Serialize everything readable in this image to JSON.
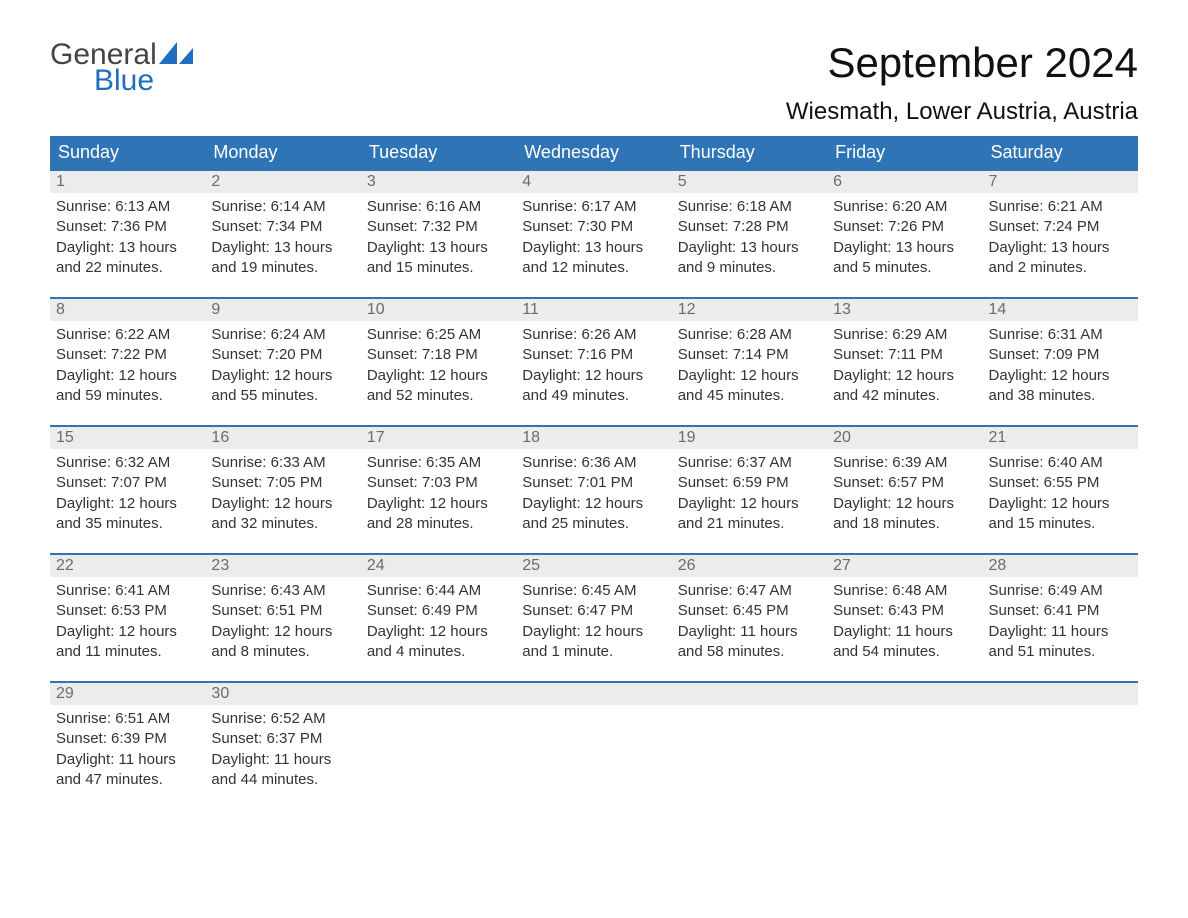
{
  "brand": {
    "word1": "General",
    "word2": "Blue",
    "tri_color": "#1e6fbf"
  },
  "header": {
    "month": "September 2024",
    "location": "Wiesmath, Lower Austria, Austria"
  },
  "colors": {
    "header_bg": "#2f75b5",
    "header_fg": "#ffffff",
    "row_border": "#2f75b5",
    "daynum_bg": "#ececec",
    "daynum_fg": "#6b6b6b",
    "page_bg": "#ffffff",
    "text": "#333333"
  },
  "weekdays": [
    "Sunday",
    "Monday",
    "Tuesday",
    "Wednesday",
    "Thursday",
    "Friday",
    "Saturday"
  ],
  "days": [
    {
      "n": "1",
      "sunrise": "6:13 AM",
      "sunset": "7:36 PM",
      "daylight": "13 hours and 22 minutes."
    },
    {
      "n": "2",
      "sunrise": "6:14 AM",
      "sunset": "7:34 PM",
      "daylight": "13 hours and 19 minutes."
    },
    {
      "n": "3",
      "sunrise": "6:16 AM",
      "sunset": "7:32 PM",
      "daylight": "13 hours and 15 minutes."
    },
    {
      "n": "4",
      "sunrise": "6:17 AM",
      "sunset": "7:30 PM",
      "daylight": "13 hours and 12 minutes."
    },
    {
      "n": "5",
      "sunrise": "6:18 AM",
      "sunset": "7:28 PM",
      "daylight": "13 hours and 9 minutes."
    },
    {
      "n": "6",
      "sunrise": "6:20 AM",
      "sunset": "7:26 PM",
      "daylight": "13 hours and 5 minutes."
    },
    {
      "n": "7",
      "sunrise": "6:21 AM",
      "sunset": "7:24 PM",
      "daylight": "13 hours and 2 minutes."
    },
    {
      "n": "8",
      "sunrise": "6:22 AM",
      "sunset": "7:22 PM",
      "daylight": "12 hours and 59 minutes."
    },
    {
      "n": "9",
      "sunrise": "6:24 AM",
      "sunset": "7:20 PM",
      "daylight": "12 hours and 55 minutes."
    },
    {
      "n": "10",
      "sunrise": "6:25 AM",
      "sunset": "7:18 PM",
      "daylight": "12 hours and 52 minutes."
    },
    {
      "n": "11",
      "sunrise": "6:26 AM",
      "sunset": "7:16 PM",
      "daylight": "12 hours and 49 minutes."
    },
    {
      "n": "12",
      "sunrise": "6:28 AM",
      "sunset": "7:14 PM",
      "daylight": "12 hours and 45 minutes."
    },
    {
      "n": "13",
      "sunrise": "6:29 AM",
      "sunset": "7:11 PM",
      "daylight": "12 hours and 42 minutes."
    },
    {
      "n": "14",
      "sunrise": "6:31 AM",
      "sunset": "7:09 PM",
      "daylight": "12 hours and 38 minutes."
    },
    {
      "n": "15",
      "sunrise": "6:32 AM",
      "sunset": "7:07 PM",
      "daylight": "12 hours and 35 minutes."
    },
    {
      "n": "16",
      "sunrise": "6:33 AM",
      "sunset": "7:05 PM",
      "daylight": "12 hours and 32 minutes."
    },
    {
      "n": "17",
      "sunrise": "6:35 AM",
      "sunset": "7:03 PM",
      "daylight": "12 hours and 28 minutes."
    },
    {
      "n": "18",
      "sunrise": "6:36 AM",
      "sunset": "7:01 PM",
      "daylight": "12 hours and 25 minutes."
    },
    {
      "n": "19",
      "sunrise": "6:37 AM",
      "sunset": "6:59 PM",
      "daylight": "12 hours and 21 minutes."
    },
    {
      "n": "20",
      "sunrise": "6:39 AM",
      "sunset": "6:57 PM",
      "daylight": "12 hours and 18 minutes."
    },
    {
      "n": "21",
      "sunrise": "6:40 AM",
      "sunset": "6:55 PM",
      "daylight": "12 hours and 15 minutes."
    },
    {
      "n": "22",
      "sunrise": "6:41 AM",
      "sunset": "6:53 PM",
      "daylight": "12 hours and 11 minutes."
    },
    {
      "n": "23",
      "sunrise": "6:43 AM",
      "sunset": "6:51 PM",
      "daylight": "12 hours and 8 minutes."
    },
    {
      "n": "24",
      "sunrise": "6:44 AM",
      "sunset": "6:49 PM",
      "daylight": "12 hours and 4 minutes."
    },
    {
      "n": "25",
      "sunrise": "6:45 AM",
      "sunset": "6:47 PM",
      "daylight": "12 hours and 1 minute."
    },
    {
      "n": "26",
      "sunrise": "6:47 AM",
      "sunset": "6:45 PM",
      "daylight": "11 hours and 58 minutes."
    },
    {
      "n": "27",
      "sunrise": "6:48 AM",
      "sunset": "6:43 PM",
      "daylight": "11 hours and 54 minutes."
    },
    {
      "n": "28",
      "sunrise": "6:49 AM",
      "sunset": "6:41 PM",
      "daylight": "11 hours and 51 minutes."
    },
    {
      "n": "29",
      "sunrise": "6:51 AM",
      "sunset": "6:39 PM",
      "daylight": "11 hours and 47 minutes."
    },
    {
      "n": "30",
      "sunrise": "6:52 AM",
      "sunset": "6:37 PM",
      "daylight": "11 hours and 44 minutes."
    }
  ],
  "labels": {
    "sunrise": "Sunrise:",
    "sunset": "Sunset:",
    "daylight": "Daylight:"
  },
  "layout": {
    "start_weekday_index": 0,
    "cols": 7
  }
}
